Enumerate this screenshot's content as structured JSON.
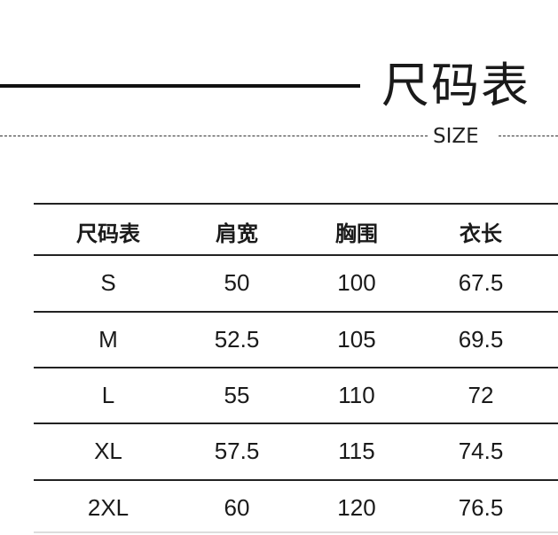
{
  "header": {
    "title": "尺码表",
    "subtitle": "SIZE"
  },
  "table": {
    "columns": [
      "尺码表",
      "肩宽",
      "胸围",
      "衣长"
    ],
    "rows": [
      [
        "S",
        "50",
        "100",
        "67.5"
      ],
      [
        "M",
        "52.5",
        "105",
        "69.5"
      ],
      [
        "L",
        "55",
        "110",
        "72"
      ],
      [
        "XL",
        "57.5",
        "115",
        "74.5"
      ],
      [
        "2XL",
        "60",
        "120",
        "76.5"
      ]
    ]
  }
}
